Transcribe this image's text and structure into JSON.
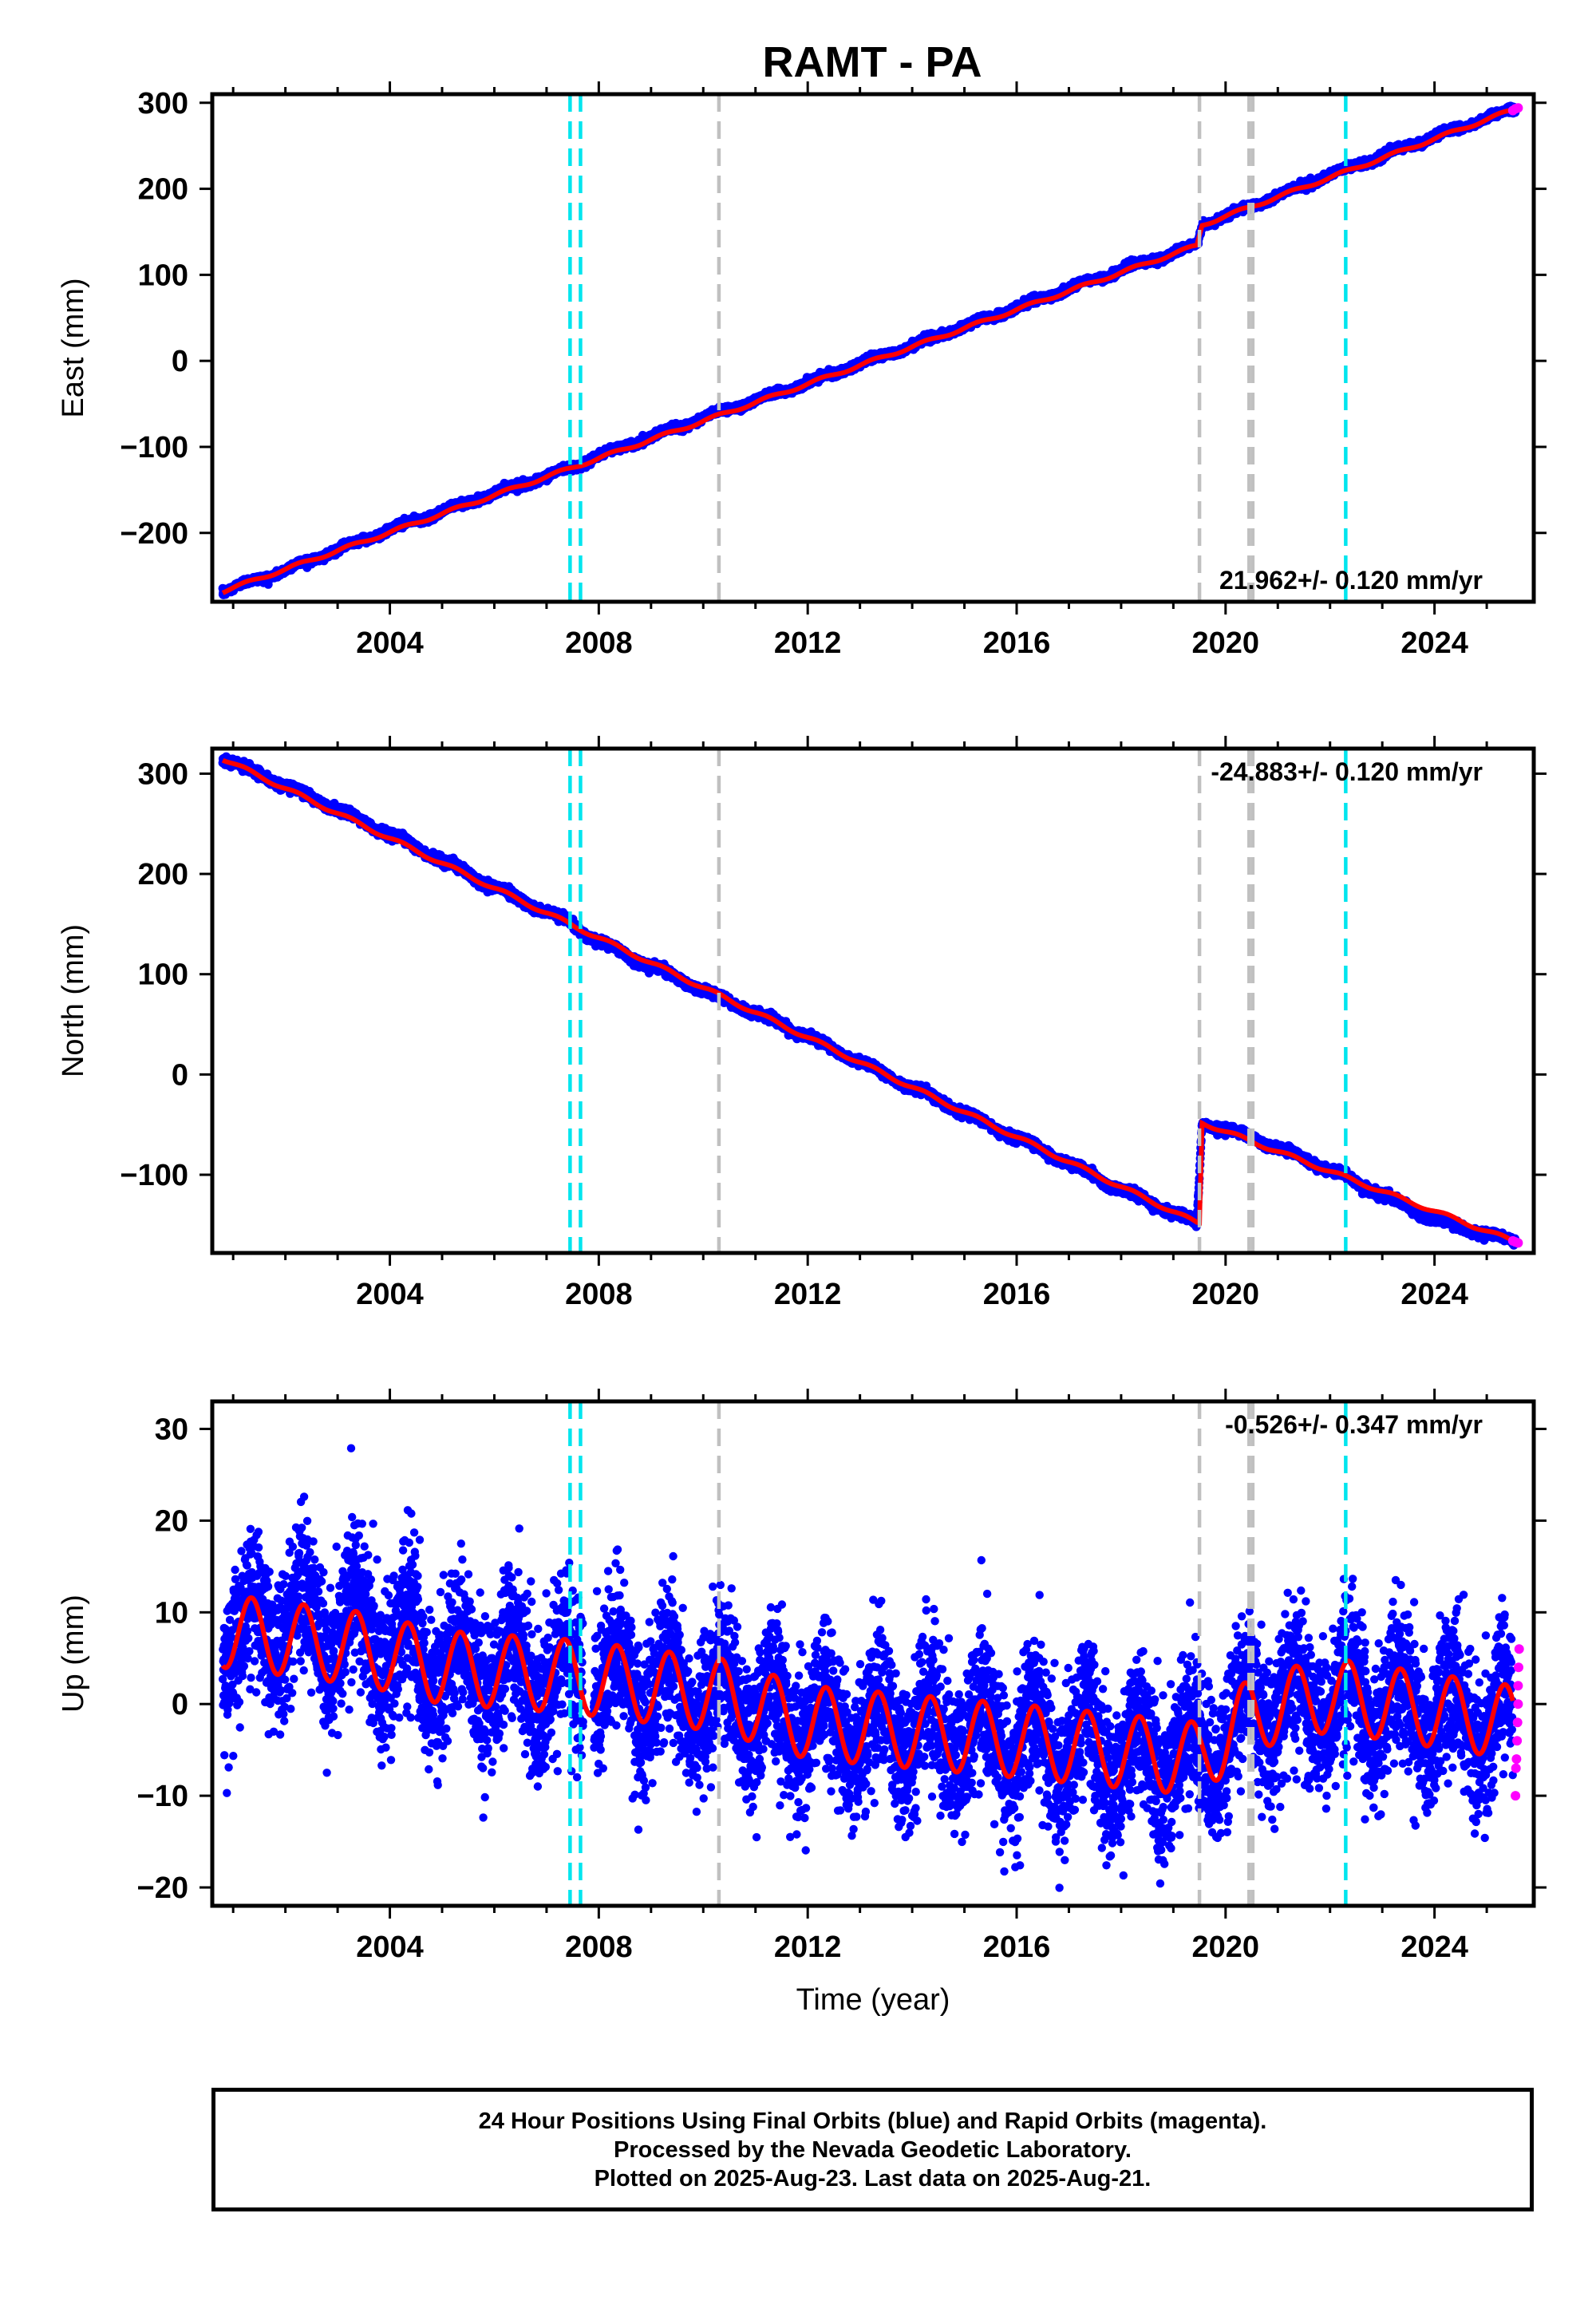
{
  "page": {
    "title": "RAMT - PA"
  },
  "colors": {
    "final_orbits": "#0000ff",
    "rapid_orbits": "#ff00ff",
    "model": "#ff0000",
    "antenna_change": "#00e5ee",
    "other_event": "#c0c0c0",
    "frame": "#000000"
  },
  "chart_data": [
    {
      "type": "scatter",
      "panel": "east",
      "title": "RAMT - PA",
      "xlabel": "",
      "ylabel": "East (mm)",
      "xlim": [
        2000.6,
        2025.9
      ],
      "ylim": [
        -280,
        310
      ],
      "x_ticks": [
        2004,
        2008,
        2012,
        2016,
        2020,
        2024
      ],
      "y_ticks": [
        -200,
        -100,
        0,
        100,
        200,
        300
      ],
      "y_tick_labels": [
        "−200",
        "−100",
        "0",
        "100",
        "200",
        "300"
      ],
      "rate_label": "21.962+/- 0.120 mm/yr",
      "grid": false,
      "series": [
        {
          "role": "final",
          "x": [
            2000.8,
            2002,
            2004,
            2006,
            2007.5,
            2008,
            2010,
            2012,
            2014,
            2016,
            2018,
            2019.45,
            2019.55,
            2021,
            2022,
            2024,
            2025.55
          ],
          "y": [
            -268,
            -243,
            -196,
            -154,
            -124,
            -110,
            -66,
            -25,
            18,
            62,
            106,
            134,
            158,
            192,
            216,
            261,
            293
          ]
        },
        {
          "role": "rapid",
          "x": [
            2025.5,
            2025.55,
            2025.6
          ],
          "y": [
            291,
            293,
            294
          ]
        },
        {
          "role": "model",
          "x": [
            2000.8,
            2007.5,
            2019.45,
            2019.55,
            2025.6
          ],
          "y": [
            -268,
            -124,
            134,
            158,
            294
          ]
        }
      ],
      "event_lines": [
        {
          "x": 2007.45,
          "kind": "antenna_change"
        },
        {
          "x": 2007.65,
          "kind": "antenna_change"
        },
        {
          "x": 2010.3,
          "kind": "other_event"
        },
        {
          "x": 2019.5,
          "kind": "other_event"
        },
        {
          "x": 2020.45,
          "kind": "other_event"
        },
        {
          "x": 2020.52,
          "kind": "other_event"
        },
        {
          "x": 2022.3,
          "kind": "antenna_change"
        }
      ]
    },
    {
      "type": "scatter",
      "panel": "north",
      "title": "",
      "xlabel": "",
      "ylabel": "North (mm)",
      "xlim": [
        2000.6,
        2025.9
      ],
      "ylim": [
        -178,
        325
      ],
      "x_ticks": [
        2004,
        2008,
        2012,
        2016,
        2020,
        2024
      ],
      "y_ticks": [
        -100,
        0,
        100,
        200,
        300
      ],
      "y_tick_labels": [
        "−100",
        "0",
        "100",
        "200",
        "300"
      ],
      "rate_label": "-24.883+/- 0.120 mm/yr",
      "grid": false,
      "series": [
        {
          "role": "final",
          "x": [
            2000.8,
            2002,
            2004,
            2006,
            2007.5,
            2008,
            2010,
            2012,
            2014,
            2016,
            2018,
            2019.45,
            2019.55,
            2020.5,
            2022,
            2024,
            2025.55
          ],
          "y": [
            315,
            288,
            240,
            187,
            150,
            132,
            84,
            38,
            -13,
            -63,
            -115,
            -148,
            -48,
            -62,
            -95,
            -145,
            -167
          ]
        },
        {
          "role": "rapid",
          "x": [
            2025.5,
            2025.55,
            2025.6
          ],
          "y": [
            -166,
            -167,
            -168
          ]
        },
        {
          "role": "model",
          "x": [
            2000.8,
            2019.45,
            2019.5,
            2019.55,
            2025.6
          ],
          "y": [
            315,
            -148,
            -148,
            -48,
            -168
          ]
        }
      ],
      "event_lines": [
        {
          "x": 2007.45,
          "kind": "antenna_change"
        },
        {
          "x": 2007.65,
          "kind": "antenna_change"
        },
        {
          "x": 2010.3,
          "kind": "other_event"
        },
        {
          "x": 2019.5,
          "kind": "other_event"
        },
        {
          "x": 2020.45,
          "kind": "other_event"
        },
        {
          "x": 2020.52,
          "kind": "other_event"
        },
        {
          "x": 2022.3,
          "kind": "antenna_change"
        }
      ]
    },
    {
      "type": "scatter",
      "panel": "up",
      "title": "",
      "xlabel": "Time (year)",
      "ylabel": "Up (mm)",
      "xlim": [
        2000.6,
        2025.9
      ],
      "ylim": [
        -22,
        33
      ],
      "x_ticks": [
        2004,
        2008,
        2012,
        2016,
        2020,
        2024
      ],
      "y_ticks": [
        -20,
        -10,
        0,
        10,
        20,
        30
      ],
      "y_tick_labels": [
        "−20",
        "−10",
        "0",
        "10",
        "20",
        "30"
      ],
      "rate_label": "-0.526+/- 0.347 mm/yr",
      "grid": false,
      "seasonal_amplitude_mm": 4,
      "scatter_sd_mm": 4,
      "series": [
        {
          "role": "final_trend",
          "x": [
            2000.8,
            2003.5,
            2005,
            2007.5,
            2010.3,
            2012,
            2016,
            2019.5,
            2020.5,
            2022,
            2025.5
          ],
          "y": [
            8,
            6,
            4,
            3,
            1,
            -2,
            -4,
            -6,
            -1,
            1,
            -2
          ]
        },
        {
          "role": "rapid",
          "x": [
            2025.55,
            2025.56,
            2025.57,
            2025.58,
            2025.59,
            2025.6,
            2025.6,
            2025.61,
            2025.62
          ],
          "y": [
            -10,
            -7,
            -6,
            -4,
            -2,
            0,
            2,
            4,
            6
          ]
        }
      ],
      "event_lines": [
        {
          "x": 2007.45,
          "kind": "antenna_change"
        },
        {
          "x": 2007.65,
          "kind": "antenna_change"
        },
        {
          "x": 2010.3,
          "kind": "other_event"
        },
        {
          "x": 2019.5,
          "kind": "other_event"
        },
        {
          "x": 2020.45,
          "kind": "other_event"
        },
        {
          "x": 2020.52,
          "kind": "other_event"
        },
        {
          "x": 2022.3,
          "kind": "antenna_change"
        }
      ]
    }
  ],
  "footer": {
    "line1": "24 Hour Positions Using Final Orbits (blue) and Rapid Orbits (magenta).",
    "line2": "Processed by the Nevada Geodetic Laboratory.",
    "line3": "Plotted on 2025-Aug-23. Last data on 2025-Aug-21."
  }
}
